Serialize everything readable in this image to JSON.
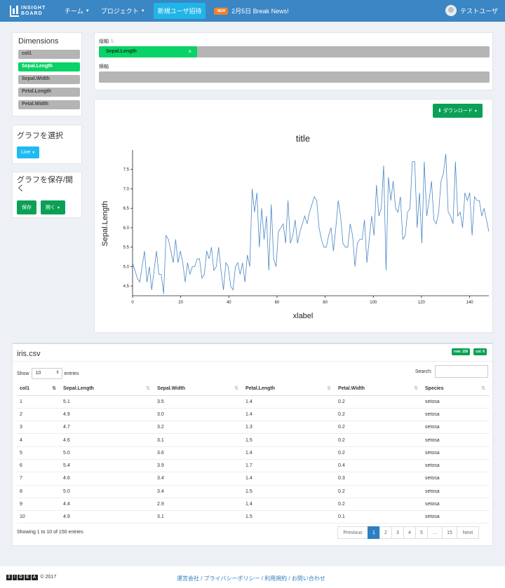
{
  "navbar": {
    "logo_line1": "INSIGHT",
    "logo_line2": "BOARD",
    "team": "チーム",
    "project": "プロジェクト",
    "invite": "新規ユーザ招待",
    "news_badge": "NEW",
    "news_text": "2月5日 Break News!",
    "user_name": "テストユーザ"
  },
  "dimensions": {
    "title": "Dimensions",
    "items": [
      "col1",
      "Sepal.Length",
      "Sepal.Width",
      "Petal.Length",
      "Petal.Width"
    ],
    "active": "Sepal.Length"
  },
  "graph_select": {
    "title": "グラフを選択",
    "button": "Line"
  },
  "graph_save": {
    "title": "グラフを保存/開く",
    "save": "保存",
    "open": "開く"
  },
  "axes": {
    "y_label": "縦軸",
    "y_chip": "Sepal.Length",
    "x_label": "横軸"
  },
  "download_button": "ダウンロード",
  "chart_data": {
    "type": "line",
    "title": "title",
    "xlabel": "xlabel",
    "ylabel": "Sepal.Length",
    "xlim": [
      0,
      148
    ],
    "ylim": [
      4.25,
      8.0
    ],
    "x_ticks": [
      "0",
      "20",
      "40",
      "60",
      "80",
      "100",
      "120",
      "140"
    ],
    "y_ticks": [
      "4.5",
      "5.0",
      "5.5",
      "6.0",
      "6.5",
      "7.0",
      "7.5"
    ],
    "values": [
      5.1,
      4.9,
      4.7,
      4.6,
      5.0,
      5.4,
      4.6,
      5.0,
      4.4,
      4.9,
      5.4,
      4.8,
      4.8,
      4.3,
      5.8,
      5.7,
      5.4,
      5.1,
      5.7,
      5.1,
      5.4,
      5.1,
      4.6,
      5.1,
      4.8,
      5.0,
      5.0,
      5.2,
      5.2,
      4.7,
      4.8,
      5.4,
      5.2,
      5.5,
      4.9,
      5.0,
      5.5,
      4.9,
      4.4,
      5.1,
      5.0,
      4.5,
      4.4,
      5.0,
      5.1,
      4.8,
      5.1,
      4.6,
      5.3,
      5.0,
      7.0,
      6.4,
      6.9,
      5.5,
      6.5,
      5.7,
      6.3,
      4.9,
      6.6,
      5.2,
      5.0,
      5.9,
      6.0,
      6.1,
      5.6,
      6.7,
      5.6,
      5.8,
      6.2,
      5.6,
      5.9,
      6.1,
      6.3,
      6.1,
      6.4,
      6.6,
      6.8,
      6.7,
      6.0,
      5.7,
      5.5,
      5.5,
      5.8,
      6.0,
      5.4,
      6.0,
      6.7,
      6.3,
      5.6,
      5.5,
      5.5,
      6.1,
      5.8,
      5.0,
      5.6,
      5.7,
      5.7,
      6.2,
      5.1,
      5.7,
      6.3,
      5.8,
      7.1,
      6.3,
      6.5,
      7.6,
      4.9,
      7.3,
      6.7,
      7.2,
      6.5,
      6.4,
      6.8,
      5.7,
      5.8,
      6.4,
      6.5,
      7.7,
      7.7,
      6.0,
      6.9,
      5.6,
      7.7,
      6.3,
      6.7,
      7.2,
      6.2,
      6.1,
      6.4,
      7.2,
      7.4,
      7.9,
      6.4,
      6.3,
      6.1,
      7.7,
      6.3,
      6.4,
      6.0,
      6.9,
      6.7,
      6.9,
      5.8,
      6.8,
      6.7,
      6.7,
      6.3,
      6.5,
      6.2,
      5.9
    ],
    "color": "#4a86c5"
  },
  "table": {
    "title": "iris.csv",
    "row_badge": "row: 150",
    "col_badge": "col: 6",
    "show_label": "Show",
    "entries_label": "entries",
    "length_value": "10",
    "search_label": "Search:",
    "columns": [
      "col1",
      "Sepal.Length",
      "Sepal.Width",
      "Petal.Length",
      "Petal.Width",
      "Species"
    ],
    "rows": [
      [
        "1",
        "5.1",
        "3.5",
        "1.4",
        "0.2",
        "setosa"
      ],
      [
        "2",
        "4.9",
        "3.0",
        "1.4",
        "0.2",
        "setosa"
      ],
      [
        "3",
        "4.7",
        "3.2",
        "1.3",
        "0.2",
        "setosa"
      ],
      [
        "4",
        "4.6",
        "3.1",
        "1.5",
        "0.2",
        "setosa"
      ],
      [
        "5",
        "5.0",
        "3.6",
        "1.4",
        "0.2",
        "setosa"
      ],
      [
        "6",
        "5.4",
        "3.9",
        "1.7",
        "0.4",
        "setosa"
      ],
      [
        "7",
        "4.6",
        "3.4",
        "1.4",
        "0.3",
        "setosa"
      ],
      [
        "8",
        "5.0",
        "3.4",
        "1.5",
        "0.2",
        "setosa"
      ],
      [
        "9",
        "4.4",
        "2.9",
        "1.4",
        "0.2",
        "setosa"
      ],
      [
        "10",
        "4.9",
        "3.1",
        "1.5",
        "0.1",
        "setosa"
      ]
    ],
    "info": "Showing 1 to 10 of 150 entries",
    "pager": [
      "Previous",
      "1",
      "2",
      "3",
      "4",
      "5",
      "…",
      "15",
      "Next"
    ],
    "pager_active": "1"
  },
  "footer": {
    "logo_boxes": [
      "3",
      "!",
      "D",
      "E",
      "A"
    ],
    "copyright": "© 2017",
    "links": "運営会社 / プライバシーポリシー / 利用規約 / お問い合わせ"
  }
}
